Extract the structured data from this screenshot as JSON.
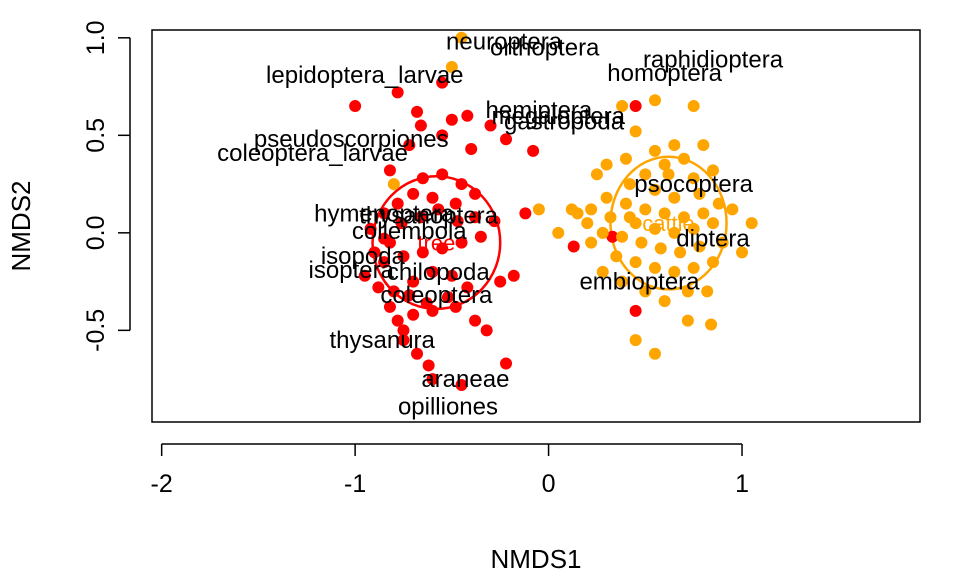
{
  "chart_data": {
    "type": "scatter",
    "title": "",
    "xlabel": "NMDS1",
    "ylabel": "NMDS2",
    "xlim": [
      -2.05,
      1.92
    ],
    "ylim": [
      -0.97,
      1.04
    ],
    "xticks": [
      -2,
      -1,
      0,
      1
    ],
    "yticks": [
      -0.5,
      0.0,
      0.5,
      1.0
    ],
    "grid": false,
    "legend": "none",
    "colors": {
      "red": "#ff0000",
      "orange": "#ffa500"
    },
    "groups": [
      {
        "label": "tree",
        "color": "#ff0000",
        "ellipse": {
          "cx": -0.58,
          "cy": -0.05,
          "rx": 0.33,
          "ry": 0.34
        },
        "points": [
          [
            -1.0,
            0.65
          ],
          [
            -0.78,
            0.72
          ],
          [
            -0.55,
            0.77
          ],
          [
            -0.68,
            0.62
          ],
          [
            -0.5,
            0.58
          ],
          [
            -0.42,
            0.6
          ],
          [
            -0.66,
            0.55
          ],
          [
            -0.3,
            0.55
          ],
          [
            -0.55,
            0.5
          ],
          [
            -0.4,
            0.43
          ],
          [
            -0.22,
            0.48
          ],
          [
            -0.08,
            0.42
          ],
          [
            -0.72,
            0.45
          ],
          [
            -0.82,
            0.32
          ],
          [
            -0.65,
            0.28
          ],
          [
            -0.55,
            0.3
          ],
          [
            -0.45,
            0.25
          ],
          [
            -0.38,
            0.2
          ],
          [
            -0.48,
            0.15
          ],
          [
            -0.6,
            0.18
          ],
          [
            -0.7,
            0.2
          ],
          [
            -0.78,
            0.15
          ],
          [
            -0.85,
            0.1
          ],
          [
            -0.92,
            0.02
          ],
          [
            -0.85,
            -0.03
          ],
          [
            -0.76,
            0.05
          ],
          [
            -0.66,
            0.08
          ],
          [
            -0.57,
            0.12
          ],
          [
            -0.47,
            0.06
          ],
          [
            -0.38,
            0.08
          ],
          [
            -0.28,
            0.06
          ],
          [
            -0.35,
            -0.02
          ],
          [
            -0.45,
            -0.05
          ],
          [
            -0.55,
            -0.08
          ],
          [
            -0.65,
            -0.1
          ],
          [
            -0.75,
            -0.12
          ],
          [
            -0.85,
            -0.15
          ],
          [
            -0.95,
            -0.22
          ],
          [
            -0.88,
            -0.28
          ],
          [
            -0.8,
            -0.3
          ],
          [
            -0.7,
            -0.25
          ],
          [
            -0.6,
            -0.2
          ],
          [
            -0.5,
            -0.22
          ],
          [
            -0.42,
            -0.28
          ],
          [
            -0.52,
            -0.33
          ],
          [
            -0.63,
            -0.36
          ],
          [
            -0.72,
            -0.32
          ],
          [
            -0.82,
            -0.38
          ],
          [
            -0.78,
            -0.45
          ],
          [
            -0.7,
            -0.42
          ],
          [
            -0.6,
            -0.4
          ],
          [
            -0.48,
            -0.38
          ],
          [
            -0.38,
            -0.45
          ],
          [
            -0.25,
            -0.25
          ],
          [
            -0.18,
            -0.22
          ],
          [
            -0.75,
            -0.55
          ],
          [
            -0.68,
            -0.62
          ],
          [
            -0.62,
            -0.68
          ],
          [
            -0.75,
            -0.5
          ],
          [
            -0.22,
            -0.67
          ],
          [
            -0.6,
            -0.75
          ],
          [
            -0.45,
            -0.78
          ],
          [
            -0.12,
            0.1
          ],
          [
            -0.82,
            -0.05
          ],
          [
            -0.9,
            -0.1
          ],
          [
            -0.32,
            -0.5
          ],
          [
            0.13,
            -0.07
          ],
          [
            0.33,
            -0.02
          ],
          [
            0.45,
            -0.4
          ],
          [
            0.45,
            0.65
          ]
        ]
      },
      {
        "label": "cattle",
        "color": "#ffa500",
        "ellipse": {
          "cx": 0.62,
          "cy": 0.05,
          "rx": 0.3,
          "ry": 0.34
        },
        "points": [
          [
            -0.45,
            1.0
          ],
          [
            -0.5,
            0.85
          ],
          [
            0.38,
            0.65
          ],
          [
            0.55,
            0.68
          ],
          [
            0.75,
            0.65
          ],
          [
            0.45,
            0.52
          ],
          [
            0.55,
            0.42
          ],
          [
            0.65,
            0.45
          ],
          [
            0.8,
            0.45
          ],
          [
            0.4,
            0.38
          ],
          [
            0.6,
            0.35
          ],
          [
            0.7,
            0.38
          ],
          [
            0.3,
            0.35
          ],
          [
            0.5,
            0.3
          ],
          [
            0.62,
            0.3
          ],
          [
            0.75,
            0.28
          ],
          [
            0.85,
            0.32
          ],
          [
            0.25,
            0.3
          ],
          [
            0.42,
            0.25
          ],
          [
            0.55,
            0.22
          ],
          [
            0.65,
            0.18
          ],
          [
            0.78,
            0.2
          ],
          [
            0.88,
            0.15
          ],
          [
            0.3,
            0.18
          ],
          [
            0.4,
            0.15
          ],
          [
            0.5,
            0.12
          ],
          [
            0.6,
            0.1
          ],
          [
            0.7,
            0.08
          ],
          [
            0.8,
            0.1
          ],
          [
            0.95,
            0.12
          ],
          [
            0.22,
            0.12
          ],
          [
            0.32,
            0.08
          ],
          [
            0.45,
            0.05
          ],
          [
            0.55,
            0.02
          ],
          [
            0.65,
            0.0
          ],
          [
            0.75,
            0.02
          ],
          [
            0.85,
            0.05
          ],
          [
            1.05,
            0.05
          ],
          [
            0.2,
            0.05
          ],
          [
            0.28,
            0.0
          ],
          [
            0.38,
            -0.02
          ],
          [
            0.48,
            -0.05
          ],
          [
            0.58,
            -0.08
          ],
          [
            0.68,
            -0.1
          ],
          [
            0.78,
            -0.07
          ],
          [
            0.9,
            -0.05
          ],
          [
            0.35,
            -0.12
          ],
          [
            0.45,
            -0.15
          ],
          [
            0.55,
            -0.18
          ],
          [
            0.65,
            -0.2
          ],
          [
            0.75,
            -0.18
          ],
          [
            0.85,
            -0.15
          ],
          [
            1.0,
            -0.1
          ],
          [
            0.15,
            0.1
          ],
          [
            0.22,
            -0.05
          ],
          [
            0.28,
            -0.2
          ],
          [
            0.38,
            -0.25
          ],
          [
            0.5,
            -0.3
          ],
          [
            0.6,
            -0.35
          ],
          [
            0.72,
            -0.3
          ],
          [
            0.82,
            -0.3
          ],
          [
            0.45,
            -0.55
          ],
          [
            0.55,
            -0.62
          ],
          [
            0.84,
            -0.47
          ],
          [
            0.72,
            -0.45
          ],
          [
            -0.05,
            0.12
          ],
          [
            0.12,
            0.12
          ],
          [
            0.05,
            0.0
          ],
          [
            0.42,
            0.08
          ],
          [
            -0.8,
            0.25
          ]
        ]
      }
    ],
    "species": [
      {
        "name": "neuroptera",
        "x": -0.23,
        "y": 0.98
      },
      {
        "name": "orthoptera",
        "x": -0.02,
        "y": 0.95
      },
      {
        "name": "raphidioptera",
        "x": 0.85,
        "y": 0.89
      },
      {
        "name": "homoptera",
        "x": 0.6,
        "y": 0.82
      },
      {
        "name": "lepidoptera_larvae",
        "x": -0.95,
        "y": 0.81
      },
      {
        "name": "hemiptera",
        "x": -0.05,
        "y": 0.63
      },
      {
        "name": "megaloptera",
        "x": 0.05,
        "y": 0.6
      },
      {
        "name": "gastropoda",
        "x": 0.08,
        "y": 0.57
      },
      {
        "name": "pseudoscorpiones",
        "x": -1.02,
        "y": 0.48
      },
      {
        "name": "coleoptera_larvae",
        "x": -1.22,
        "y": 0.41
      },
      {
        "name": "psocoptera",
        "x": 0.75,
        "y": 0.25
      },
      {
        "name": "hymenoptera",
        "x": -0.85,
        "y": 0.1
      },
      {
        "name": "thysanoptera",
        "x": -0.62,
        "y": 0.09
      },
      {
        "name": "collembola",
        "x": -0.72,
        "y": 0.01
      },
      {
        "name": "diptera",
        "x": 0.85,
        "y": -0.03
      },
      {
        "name": "isopoda",
        "x": -0.96,
        "y": -0.12
      },
      {
        "name": "isoptera",
        "x": -1.02,
        "y": -0.19
      },
      {
        "name": "chilopoda",
        "x": -0.57,
        "y": -0.2
      },
      {
        "name": "embioptera",
        "x": 0.47,
        "y": -0.25
      },
      {
        "name": "coleoptera",
        "x": -0.58,
        "y": -0.32
      },
      {
        "name": "thysanura",
        "x": -0.86,
        "y": -0.55
      },
      {
        "name": "araneae",
        "x": -0.43,
        "y": -0.75
      },
      {
        "name": "opilliones",
        "x": -0.52,
        "y": -0.89
      }
    ]
  }
}
